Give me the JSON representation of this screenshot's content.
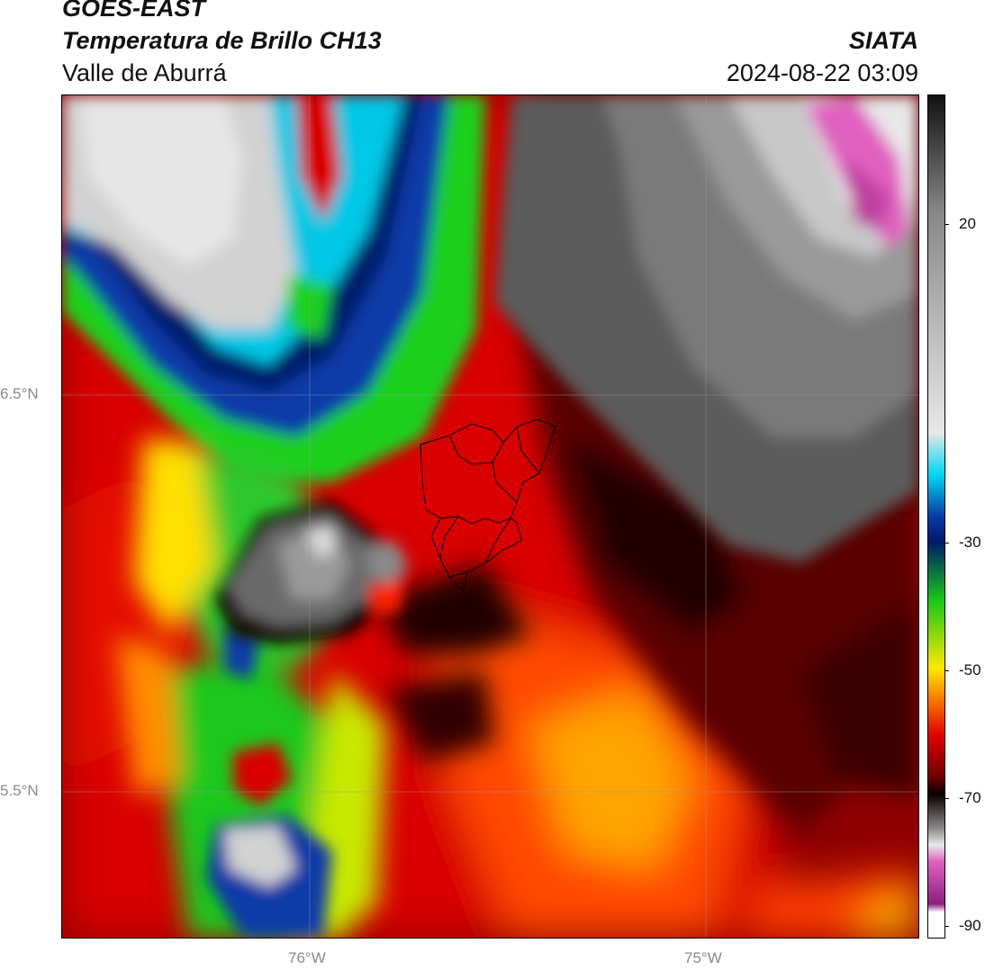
{
  "header": {
    "satellite": "GOES-EAST",
    "product": "Temperatura de Brillo CH13",
    "region": "Valle de Aburrá",
    "organization": "SIATA",
    "datetime": "2024-08-22 03:09"
  },
  "map": {
    "lat_labels": [
      "6.5°N",
      "5.5°N"
    ],
    "lon_labels": [
      "76°W",
      "75°W"
    ]
  },
  "colorbar": {
    "ticks": [
      "20",
      "-30",
      "-50",
      "-70",
      "-90"
    ],
    "colors": {
      "warm_gray_top": "#111111",
      "gray_mid": "#888888",
      "light_gray": "#e8e8e8",
      "cyan": "#00d8f0",
      "blue": "#0a3aa8",
      "dark_blue": "#001a6a",
      "green": "#18c818",
      "yellow": "#ffe800",
      "orange": "#ff8c00",
      "red": "#e00000",
      "dark_red": "#6a0000",
      "black": "#0a0000",
      "magenta": "#e060c0",
      "purple": "#8a2080"
    }
  }
}
